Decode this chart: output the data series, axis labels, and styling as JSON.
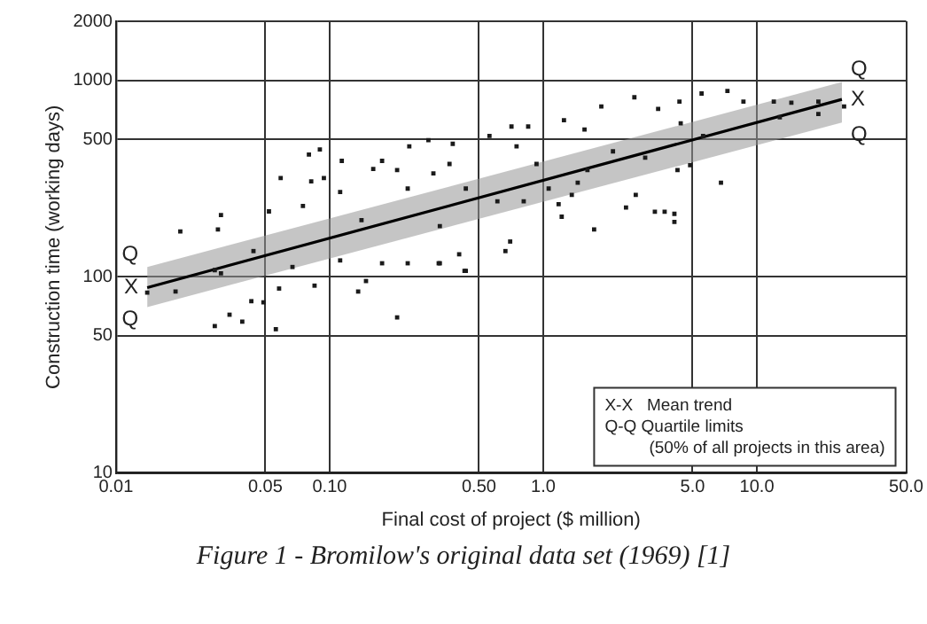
{
  "chart_data": {
    "type": "scatter",
    "title": "Figure 1 - Bromilow's original data set (1969) [1]",
    "xlabel": "Final cost of project ($ million)",
    "ylabel": "Construction time (working days)",
    "log": "xy",
    "grid": true,
    "xlim": [
      0.01,
      50
    ],
    "ylim": [
      10,
      2000
    ],
    "xticks": [
      0.01,
      0.05,
      {
        "value": 0.1,
        "label": "0.10"
      },
      {
        "value": 0.5,
        "label": "0.50"
      },
      {
        "value": 1,
        "label": "1.0"
      },
      {
        "value": 5,
        "label": "5.0"
      },
      {
        "value": 10,
        "label": "10.0"
      },
      {
        "value": 50,
        "label": "50.0"
      }
    ],
    "yticks": [
      10,
      50,
      100,
      500,
      1000,
      2000
    ],
    "series": [
      {
        "color": "#1a1a1a",
        "marker": "square",
        "x": [
          0.02,
          0.031,
          0.03,
          0.052,
          0.08,
          0.09,
          0.059,
          0.082,
          0.094,
          0.075,
          0.114,
          0.112,
          0.141,
          0.16,
          0.176,
          0.207,
          0.236,
          0.29,
          0.306,
          0.377,
          0.232,
          0.328,
          0.404,
          0.176,
          0.067,
          0.044,
          0.029,
          0.014,
          0.019,
          0.029,
          0.034,
          0.039,
          0.043,
          0.049,
          0.056,
          0.058,
          0.085,
          0.136,
          0.148,
          0.207,
          0.324,
          0.434,
          0.031,
          0.232,
          0.112,
          0.56,
          0.71,
          0.85,
          1.25,
          1.87,
          2.67,
          3.45,
          4.34,
          5.51,
          7.28,
          8.65,
          12,
          14.5,
          19.4,
          25.6,
          6.79,
          3.33,
          4.11,
          4.11,
          3.7,
          1.73,
          2.44,
          2.71,
          1.22,
          0.7,
          0.665,
          0.428,
          0.328,
          0.75,
          1.56,
          4.4,
          4.87,
          4.25,
          1.45,
          2.12,
          0.93,
          12.8,
          0.434,
          0.364,
          1.18,
          1.06,
          5.6,
          3,
          1.61,
          0.61,
          0.81,
          1.36,
          19.4
        ],
        "values": [
          170,
          206,
          174,
          215,
          419,
          445,
          318,
          306,
          318,
          229,
          389,
          270,
          194,
          354,
          389,
          349,
          461,
          496,
          336,
          475,
          281,
          181,
          130,
          117,
          112,
          135,
          108,
          83,
          84,
          56,
          64,
          59,
          75,
          74,
          54,
          87,
          90,
          84,
          95,
          62,
          117,
          107,
          104,
          117,
          121,
          521,
          582,
          582,
          627,
          736,
          820,
          715,
          780,
          857,
          883,
          780,
          780,
          769,
          674,
          736,
          301,
          214,
          209,
          190,
          214,
          174,
          225,
          261,
          202,
          151,
          135,
          107,
          117,
          461,
          562,
          604,
          370,
          349,
          301,
          435,
          375,
          649,
          281,
          375,
          234,
          281,
          521,
          404,
          349,
          242,
          242,
          261,
          780
        ]
      },
      {
        "type": "line",
        "color": "#000000",
        "x": [
          0.014,
          25
        ],
        "values": [
          88,
          800
        ],
        "lower": [
          70,
          610
        ],
        "upper": [
          112,
          980
        ]
      }
    ],
    "annotations": [
      "X-X   Mean trend",
      "Q-Q Quartile limits",
      "(50% of all projects in this area)",
      "Q",
      "X",
      "Q",
      "Q",
      "X",
      "Q"
    ]
  }
}
